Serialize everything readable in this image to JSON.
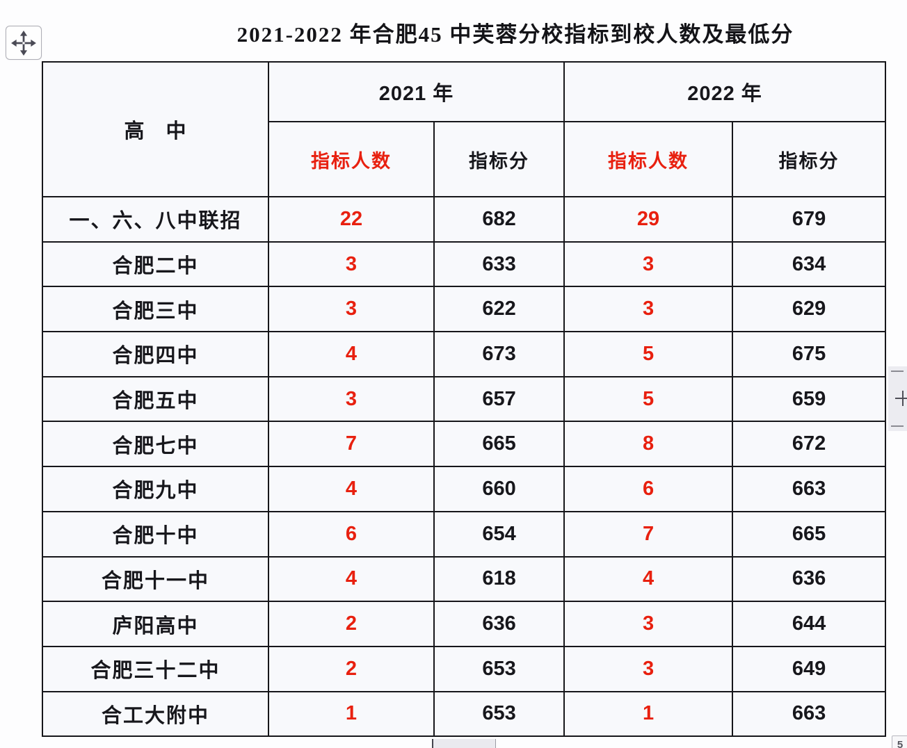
{
  "page": {
    "title": "2021-2022 年合肥45 中芙蓉分校指标到校人数及最低分"
  },
  "colors": {
    "accent_red": "#e8200f",
    "text_black": "#17171c",
    "cell_background": "#f8f9fc",
    "table_border": "#16161a"
  },
  "icons": {
    "move_handle": "move-cross-arrows",
    "scroll_plus": "plus"
  },
  "table": {
    "corner_header": "高　中",
    "year_groups": [
      {
        "label": "2021 年",
        "sub": [
          "指标人数",
          "指标分"
        ]
      },
      {
        "label": "2022 年",
        "sub": [
          "指标人数",
          "指标分"
        ]
      }
    ],
    "rows": [
      {
        "school": "一、六、八中联招",
        "count_2021": "22",
        "score_2021": "682",
        "count_2022": "29",
        "score_2022": "679"
      },
      {
        "school": "合肥二中",
        "count_2021": "3",
        "score_2021": "633",
        "count_2022": "3",
        "score_2022": "634"
      },
      {
        "school": "合肥三中",
        "count_2021": "3",
        "score_2021": "622",
        "count_2022": "3",
        "score_2022": "629"
      },
      {
        "school": "合肥四中",
        "count_2021": "4",
        "score_2021": "673",
        "count_2022": "5",
        "score_2022": "675"
      },
      {
        "school": "合肥五中",
        "count_2021": "3",
        "score_2021": "657",
        "count_2022": "5",
        "score_2022": "659"
      },
      {
        "school": "合肥七中",
        "count_2021": "7",
        "score_2021": "665",
        "count_2022": "8",
        "score_2022": "672"
      },
      {
        "school": "合肥九中",
        "count_2021": "4",
        "score_2021": "660",
        "count_2022": "6",
        "score_2022": "663"
      },
      {
        "school": "合肥十中",
        "count_2021": "6",
        "score_2021": "654",
        "count_2022": "7",
        "score_2022": "665"
      },
      {
        "school": "合肥十一中",
        "count_2021": "4",
        "score_2021": "618",
        "count_2022": "4",
        "score_2022": "636"
      },
      {
        "school": "庐阳高中",
        "count_2021": "2",
        "score_2021": "636",
        "count_2022": "3",
        "score_2022": "644"
      },
      {
        "school": "合肥三十二中",
        "count_2021": "2",
        "score_2021": "653",
        "count_2022": "3",
        "score_2022": "649"
      },
      {
        "school": "合工大附中",
        "count_2021": "1",
        "score_2021": "653",
        "count_2022": "1",
        "score_2022": "663"
      }
    ]
  },
  "fragments": {
    "corner_glyph": "5"
  }
}
